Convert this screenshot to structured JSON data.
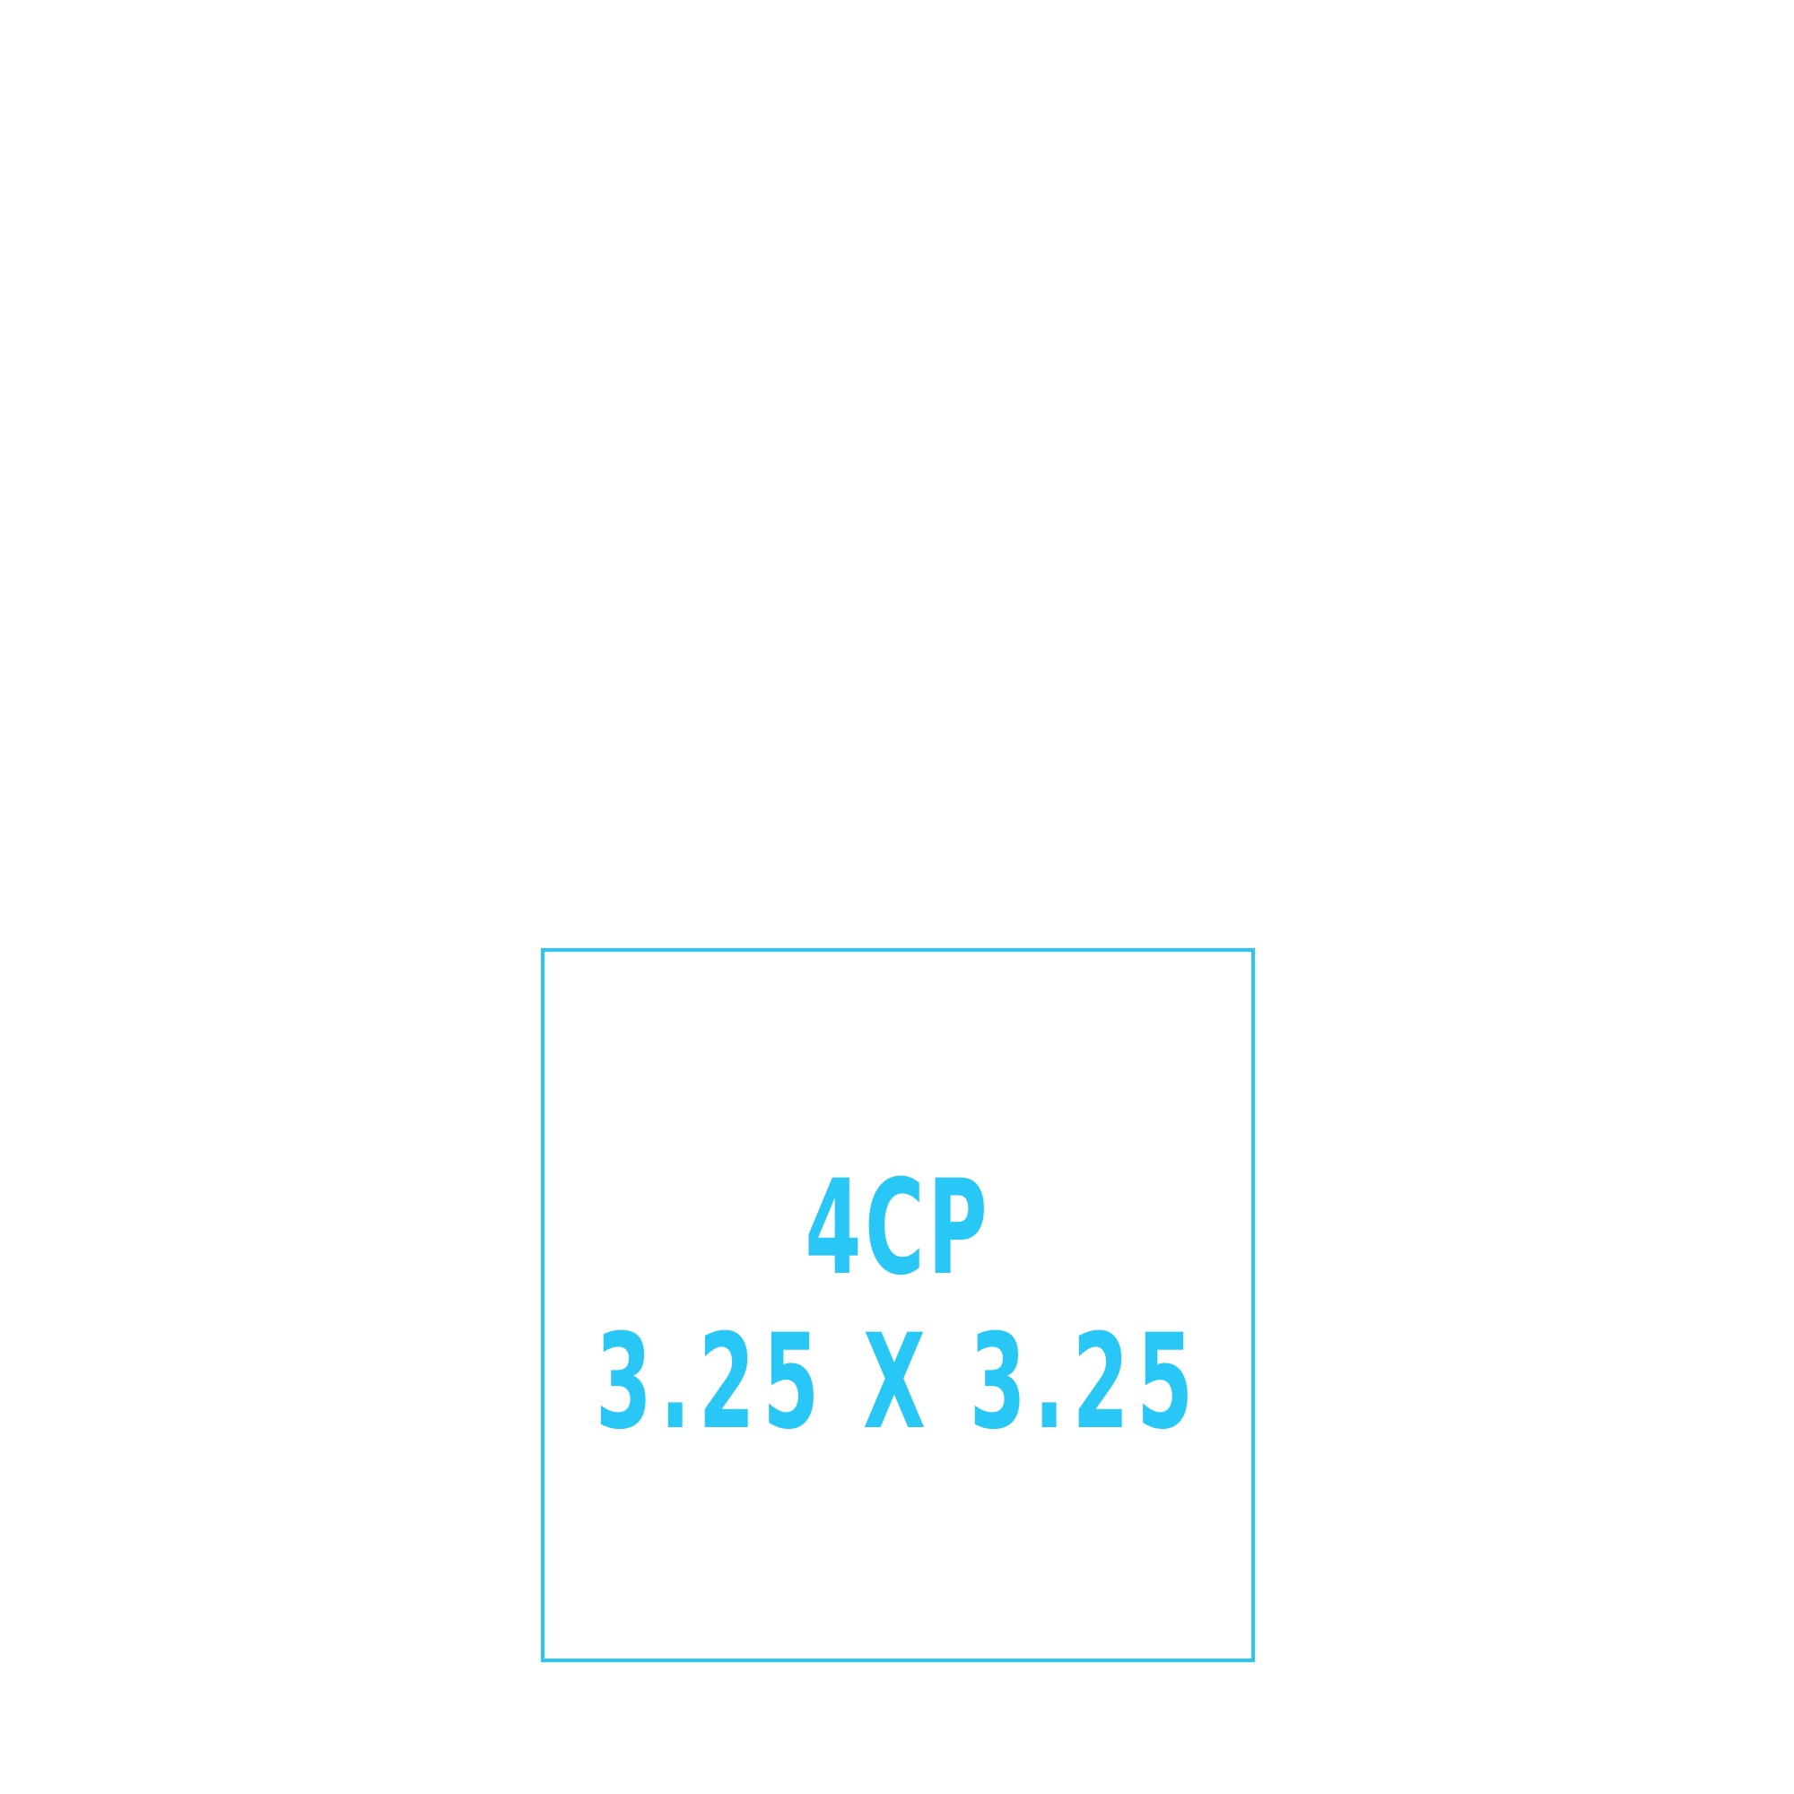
{
  "imprint": {
    "color_label": "4CP",
    "size_label": "3.25 X 3.25"
  },
  "colors": {
    "accent": "#29c7f5",
    "background": "#ffffff"
  }
}
